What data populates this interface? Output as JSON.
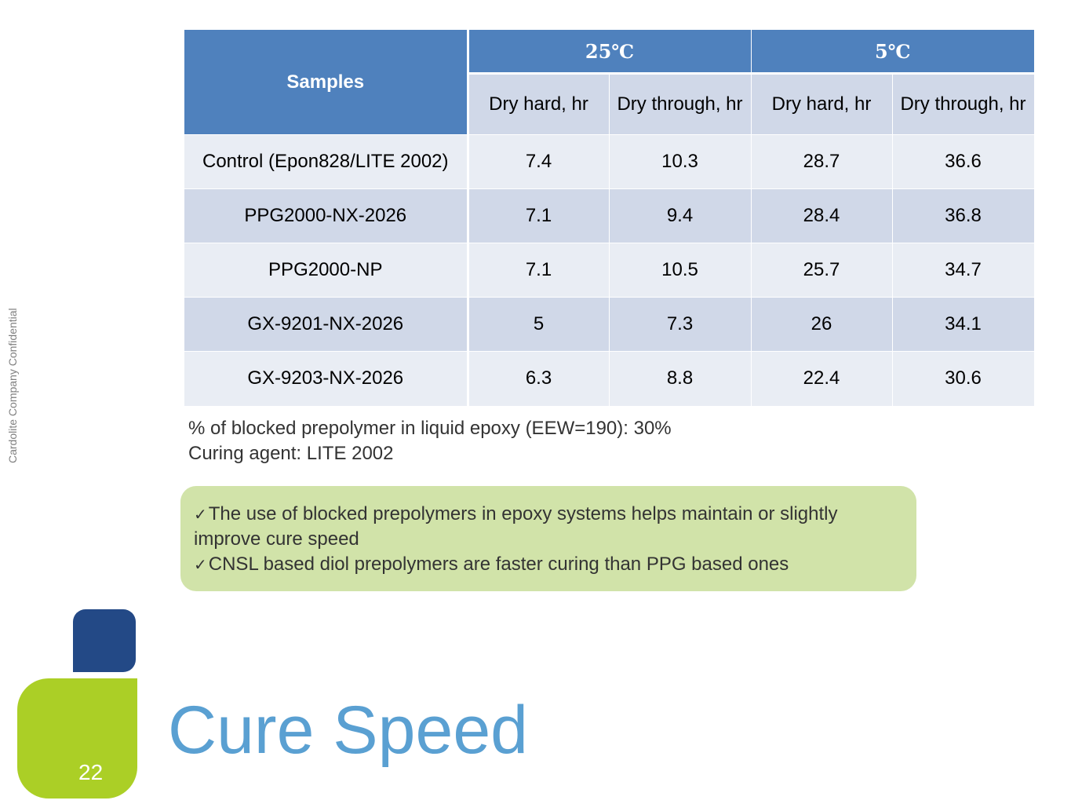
{
  "slide": {
    "title": "Cure Speed",
    "page_number": "22",
    "confidential": "Cardolite Company Confidential"
  },
  "table": {
    "header": {
      "samples": "Samples",
      "group_1": "25℃",
      "group_2": "5℃",
      "sub": [
        "Dry hard, hr",
        "Dry through, hr",
        "Dry hard, hr",
        "Dry through, hr"
      ]
    },
    "rows": [
      {
        "sample": "Control (Epon828/LITE 2002)",
        "v1": "7.4",
        "v2": "10.3",
        "v3": "28.7",
        "v4": "36.6"
      },
      {
        "sample": "PPG2000-NX-2026",
        "v1": "7.1",
        "v2": "9.4",
        "v3": "28.4",
        "v4": "36.8"
      },
      {
        "sample": "PPG2000-NP",
        "v1": "7.1",
        "v2": "10.5",
        "v3": "25.7",
        "v4": "34.7"
      },
      {
        "sample": "GX-9201-NX-2026",
        "v1": "5",
        "v2": "7.3",
        "v3": "26",
        "v4": "34.1"
      },
      {
        "sample": "GX-9203-NX-2026",
        "v1": "6.3",
        "v2": "8.8",
        "v3": "22.4",
        "v4": "30.6"
      }
    ]
  },
  "notes": {
    "line_1": "% of blocked prepolymer in liquid epoxy (EEW=190): 30%",
    "line_2": "Curing agent: LITE 2002"
  },
  "summary": {
    "bullet_1": "The use of blocked prepolymers in epoxy systems helps maintain or slightly improve cure speed",
    "bullet_2": "CNSL based diol prepolymers are faster curing than PPG based ones"
  },
  "colors": {
    "header_blue": "#4f81bd",
    "row_light": "#e9edf4",
    "row_dark": "#d0d8e8",
    "summary_green": "#d1e3a9",
    "title_blue": "#5aa0d2",
    "square_blue": "#234986",
    "square_green": "#abcf26"
  },
  "icons": {
    "check": "check-mark-icon"
  }
}
